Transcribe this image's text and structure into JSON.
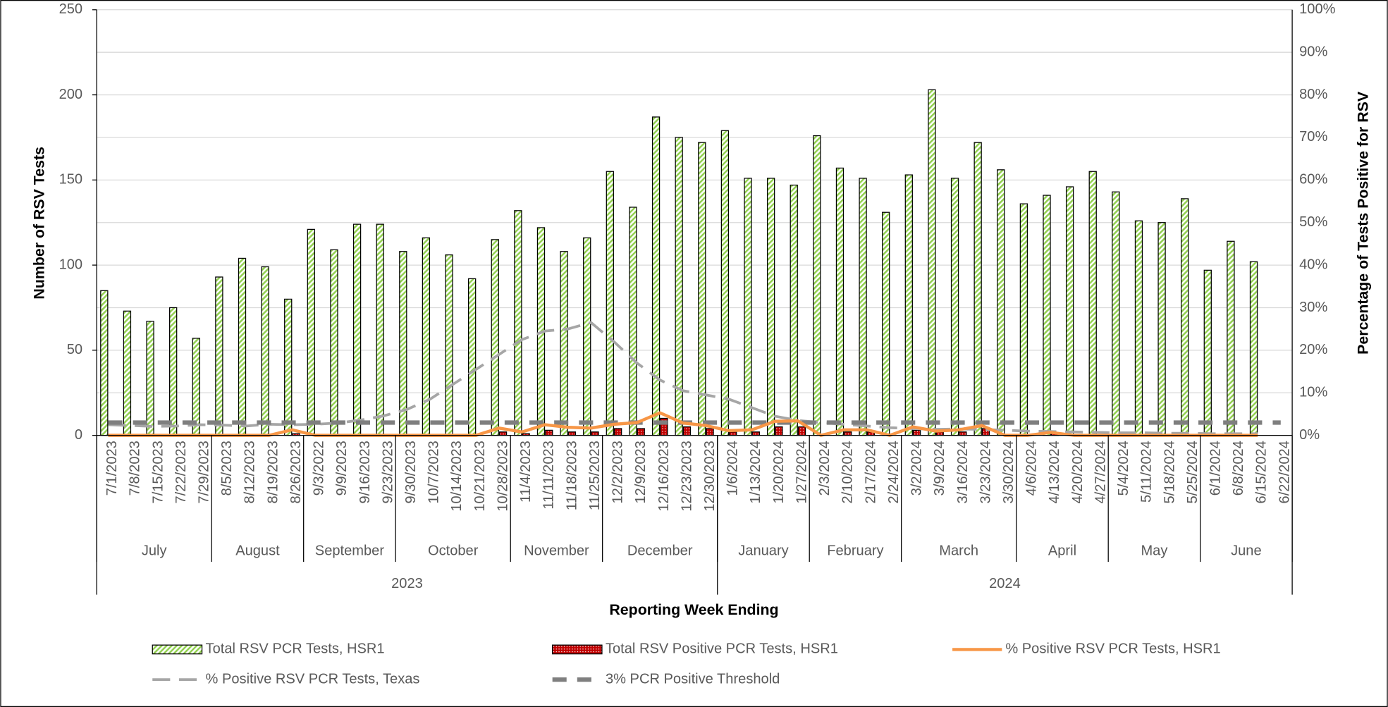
{
  "chart_data": {
    "type": "bar",
    "x_title": "Reporting Week Ending",
    "y_title": "Number of RSV Tests",
    "y2_title": "Percentage of Tests Positive for RSV",
    "categories": [
      "7/1/2023",
      "7/8/2023",
      "7/15/2023",
      "7/22/2023",
      "7/29/2023",
      "8/5/2023",
      "8/12/2023",
      "8/19/2023",
      "8/26/2023",
      "9/3/2022",
      "9/9/2023",
      "9/16/2023",
      "9/23/2023",
      "9/30/2023",
      "10/7/2023",
      "10/14/2023",
      "10/21/2023",
      "10/28/2023",
      "11/4/2023",
      "11/11/2023",
      "11/18/2023",
      "11/25/2023",
      "12/2/2023",
      "12/9/2023",
      "12/16/2023",
      "12/23/2023",
      "12/30/2023",
      "1/6/2024",
      "1/13/2024",
      "1/20/2024",
      "1/27/2024",
      "2/3/2024",
      "2/10/2024",
      "2/17/2024",
      "2/24/2024",
      "3/2/2024",
      "3/9/2024",
      "3/16/2024",
      "3/23/2024",
      "3/30/2024",
      "4/6/2024",
      "4/13/2024",
      "4/20/2024",
      "4/27/2024",
      "5/4/2024",
      "5/11/2024",
      "5/18/2024",
      "5/25/2024",
      "6/1/2024",
      "6/8/2024",
      "6/15/2024",
      "6/22/2024"
    ],
    "month_groups": [
      {
        "label": "July",
        "span": 5
      },
      {
        "label": "August",
        "span": 4
      },
      {
        "label": "September",
        "span": 4
      },
      {
        "label": "October",
        "span": 5
      },
      {
        "label": "November",
        "span": 4
      },
      {
        "label": "December",
        "span": 5
      },
      {
        "label": "January",
        "span": 4
      },
      {
        "label": "February",
        "span": 4
      },
      {
        "label": "March",
        "span": 5
      },
      {
        "label": "April",
        "span": 4
      },
      {
        "label": "May",
        "span": 4
      },
      {
        "label": "June",
        "span": 4
      }
    ],
    "year_groups": [
      {
        "label": "2023",
        "span": 27
      },
      {
        "label": "2024",
        "span": 25
      }
    ],
    "ylim": [
      0,
      250
    ],
    "yticks": [
      0,
      50,
      100,
      150,
      200,
      250
    ],
    "y2lim": [
      0,
      100
    ],
    "y2ticks": [
      {
        "value": 0,
        "label": "0%"
      },
      {
        "value": 10,
        "label": "10%"
      },
      {
        "value": 20,
        "label": "20%"
      },
      {
        "value": 30,
        "label": "30%"
      },
      {
        "value": 40,
        "label": "40%"
      },
      {
        "value": 50,
        "label": "50%"
      },
      {
        "value": 60,
        "label": "60%"
      },
      {
        "value": 70,
        "label": "70%"
      },
      {
        "value": 80,
        "label": "80%"
      },
      {
        "value": 90,
        "label": "90%"
      },
      {
        "value": 100,
        "label": "100%"
      }
    ],
    "grid": true,
    "legend": "bottom",
    "series": [
      {
        "name": "Total RSV PCR Tests, HSR1",
        "type": "bar",
        "pattern": "hatch",
        "color": "#92d050",
        "values": [
          85,
          73,
          67,
          75,
          57,
          93,
          104,
          99,
          80,
          121,
          109,
          124,
          124,
          108,
          116,
          106,
          92,
          115,
          132,
          122,
          108,
          116,
          155,
          134,
          187,
          175,
          172,
          179,
          151,
          151,
          147,
          176,
          157,
          151,
          131,
          153,
          203,
          151,
          172,
          156,
          136,
          141,
          146,
          155,
          143,
          126,
          125,
          139,
          97,
          114,
          102,
          null
        ]
      },
      {
        "name": "Total RSV Positive PCR Tests, HSR1",
        "type": "bar",
        "pattern": "dots",
        "color": "#c00000",
        "values": [
          0,
          0,
          0,
          0,
          0,
          0,
          0,
          0,
          1,
          0,
          0,
          0,
          0,
          0,
          0,
          0,
          0,
          2,
          1,
          3,
          2,
          2,
          4,
          4,
          10,
          5,
          4,
          2,
          2,
          5,
          5,
          0,
          2,
          2,
          0,
          3,
          2,
          2,
          4,
          0,
          0,
          1,
          0,
          0,
          0,
          0,
          0,
          0,
          0,
          0,
          0,
          null
        ]
      },
      {
        "name": "% Positive RSV PCR Tests, HSR1",
        "type": "line",
        "axis": "y2",
        "dash": "solid",
        "width": 3.5,
        "color": "#f79646",
        "values": [
          0,
          0,
          0,
          0,
          0,
          0,
          0,
          0,
          1.3,
          0,
          0,
          0,
          0,
          0,
          0,
          0,
          0,
          1.7,
          0.8,
          2.5,
          1.9,
          1.7,
          2.6,
          3,
          5.3,
          2.9,
          2.3,
          1.1,
          1.3,
          3.3,
          3.4,
          0,
          1.3,
          1.3,
          0,
          2,
          1,
          1.3,
          2.3,
          0,
          0,
          0.7,
          0,
          0,
          0,
          0,
          0,
          0,
          0,
          0,
          0,
          null
        ]
      },
      {
        "name": "% Positive RSV PCR Tests, Texas",
        "type": "line",
        "axis": "y2",
        "dash": "dashed",
        "width": 3,
        "color": "#a6a6a6",
        "values": [
          2.5,
          2.3,
          2.1,
          2.2,
          2.5,
          2.4,
          2.2,
          2.6,
          2.5,
          2.6,
          2.9,
          3.6,
          4.6,
          6.1,
          8.5,
          12,
          15.5,
          19,
          22.5,
          24.5,
          25,
          26.5,
          22,
          17,
          13,
          10.5,
          9.5,
          8.5,
          6.5,
          4.5,
          3.5,
          3,
          2.6,
          2.2,
          1.8,
          1.6,
          1.4,
          1.5,
          1.4,
          1.2,
          1,
          0.9,
          0.8,
          0.7,
          0.6,
          0.6,
          0.5,
          0.5,
          0.4,
          0.4,
          0.4,
          null
        ]
      },
      {
        "name": "3% PCR Positive Threshold",
        "type": "line",
        "axis": "y2",
        "dash": "dashed",
        "width": 5,
        "color": "#7f7f7f",
        "values": [
          3,
          3,
          3,
          3,
          3,
          3,
          3,
          3,
          3,
          3,
          3,
          3,
          3,
          3,
          3,
          3,
          3,
          3,
          3,
          3,
          3,
          3,
          3,
          3,
          3,
          3,
          3,
          3,
          3,
          3,
          3,
          3,
          3,
          3,
          3,
          3,
          3,
          3,
          3,
          3,
          3,
          3,
          3,
          3,
          3,
          3,
          3,
          3,
          3,
          3,
          3,
          3
        ]
      }
    ]
  }
}
